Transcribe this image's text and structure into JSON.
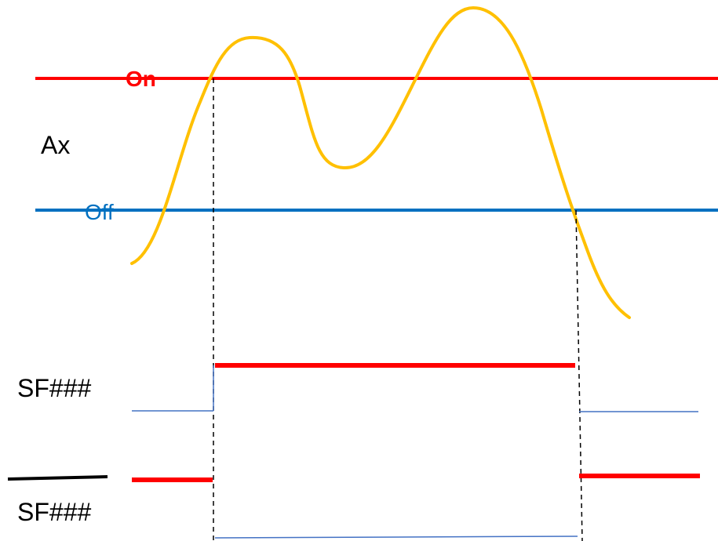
{
  "labels": {
    "on": "On",
    "off": "Off",
    "input": "Ax",
    "output": "SF###",
    "output_inverted": "SF###"
  },
  "colors": {
    "on_threshold": "#ff0000",
    "off_threshold": "#0070c0",
    "signal": "#ffc000",
    "output_high": "#ff0000",
    "output_low": "#4472c4",
    "guide": "#000000",
    "text": "#000000"
  }
}
